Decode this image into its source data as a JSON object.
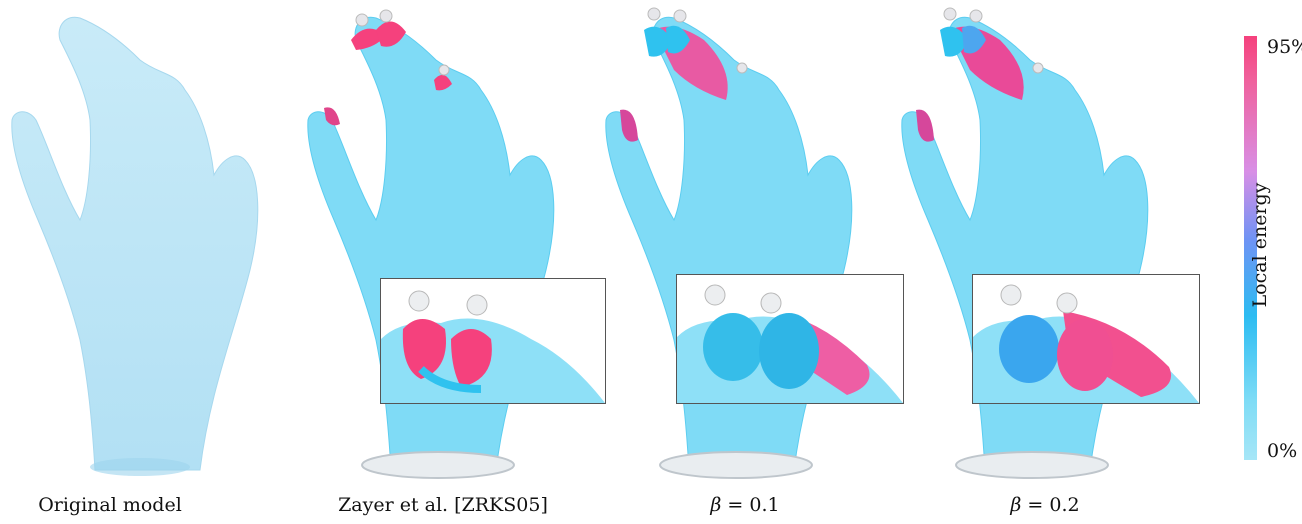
{
  "figure": {
    "captions": {
      "original": "Original model",
      "zayer": "Zayer et al. [ZRKS05]",
      "beta1_symbol": "β",
      "beta1_value": "= 0.1",
      "beta2_symbol": "β",
      "beta2_value": "= 0.2"
    },
    "colorbar": {
      "top_label": "95%",
      "bottom_label": "0%",
      "title": "Local energy",
      "colors": [
        "#f5417d",
        "#d88fe6",
        "#6f93f4",
        "#2cbcf2",
        "#a6e6f7"
      ]
    },
    "colors": {
      "skin_original": "#bfe5f6",
      "skin_low": "#8edff7",
      "skin_mid": "#2fc2ef",
      "high_energy": "#f5417d"
    }
  }
}
